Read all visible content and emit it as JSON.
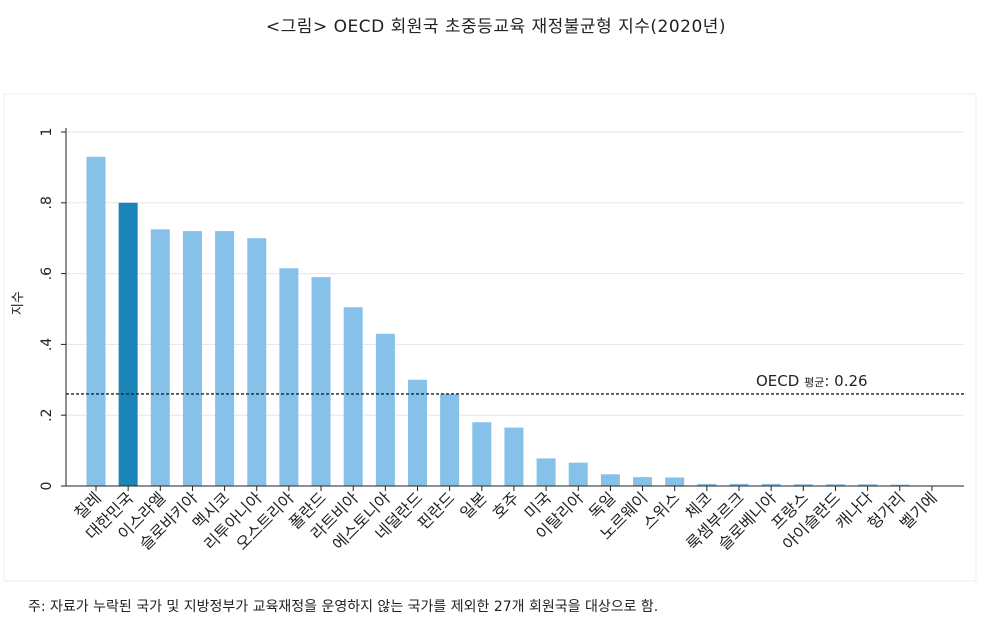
{
  "chart_data": {
    "type": "bar",
    "title": "<그림> OECD 회원국 초중등교육 재정불균형 지수(2020년)",
    "xlabel": "",
    "ylabel": "지수",
    "ylim": [
      0,
      1
    ],
    "yticks": [
      0,
      0.2,
      0.4,
      0.6,
      0.8,
      1
    ],
    "ytick_labels": [
      "0",
      ".2",
      ".4",
      ".6",
      ".8",
      "1"
    ],
    "categories": [
      "칠레",
      "대한민국",
      "이스라엘",
      "슬로바키아",
      "멕시코",
      "리투아니아",
      "오스트리아",
      "폴란드",
      "라트비아",
      "에스토니아",
      "네덜란드",
      "핀란드",
      "일본",
      "호주",
      "미국",
      "이탈리아",
      "독일",
      "노르웨이",
      "스위스",
      "체코",
      "룩셈부르크",
      "슬로베니아",
      "프랑스",
      "아이슬란드",
      "캐나다",
      "헝가리",
      "벨기에"
    ],
    "values": [
      0.93,
      0.8,
      0.725,
      0.72,
      0.72,
      0.7,
      0.615,
      0.59,
      0.505,
      0.43,
      0.3,
      0.26,
      0.18,
      0.165,
      0.078,
      0.066,
      0.033,
      0.025,
      0.024,
      0.006,
      0.006,
      0.006,
      0.005,
      0.005,
      0.005,
      0.004,
      0.0
    ],
    "highlight_category": "대한민국",
    "bar_color": "#85c1e9",
    "highlight_color": "#1a85b8",
    "grid": true,
    "reference_line": {
      "value": 0.26,
      "label_main": "OECD",
      "label_sub": "평균",
      "label_value": ": 0.26"
    }
  },
  "note": "주: 자료가 누락된 국가 및 지방정부가 교육재정을 운영하지 않는 국가를 제외한 27개 회원국을 대상으로 함."
}
